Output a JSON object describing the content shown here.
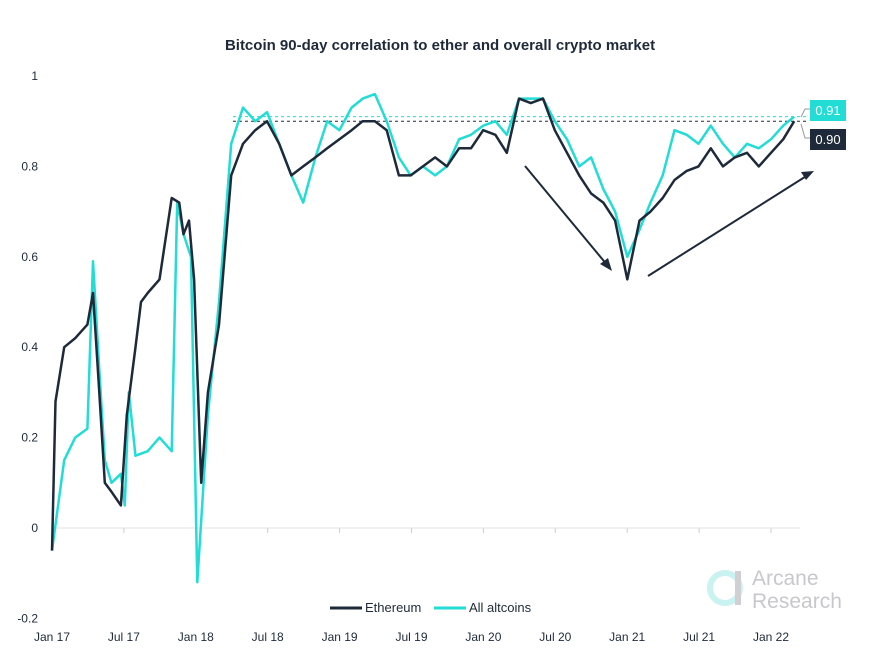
{
  "chart_data": {
    "type": "line",
    "title": "Bitcoin 90-day correlation to ether and overall crypto market",
    "xlabel": "",
    "ylabel": "",
    "ylim": [
      -0.2,
      1
    ],
    "yticks": [
      "1",
      "0.8",
      "0.6",
      "0.4",
      "0.2",
      "0",
      "-0.2"
    ],
    "xticks": [
      "Jan 17",
      "Jul 17",
      "Jan 18",
      "Jul 18",
      "Jan 19",
      "Jul 19",
      "Jan 20",
      "Jul 20",
      "Jan 21",
      "Jul 21",
      "Jan 22"
    ],
    "grid": false,
    "legend": "bottom",
    "colors": {
      "Ethereum": "#1e2a3a",
      "All altcoins": "#22dcd6"
    },
    "end_labels": {
      "All altcoins": "0.91",
      "Ethereum": "0.90"
    },
    "series": [
      {
        "name": "Ethereum",
        "x": [
          "2017-01-01",
          "2017-01-10",
          "2017-02-01",
          "2017-03-01",
          "2017-04-01",
          "2017-04-15",
          "2017-05-01",
          "2017-05-15",
          "2017-06-01",
          "2017-06-25",
          "2017-07-10",
          "2017-08-01",
          "2017-08-15",
          "2017-09-01",
          "2017-10-01",
          "2017-11-01",
          "2017-11-20",
          "2017-12-01",
          "2017-12-15",
          "2017-12-28",
          "2018-01-15",
          "2018-02-01",
          "2018-03-01",
          "2018-04-01",
          "2018-05-01",
          "2018-06-01",
          "2018-07-01",
          "2018-08-01",
          "2018-09-01",
          "2018-10-01",
          "2018-11-01",
          "2018-12-01",
          "2019-01-01",
          "2019-02-01",
          "2019-03-01",
          "2019-04-01",
          "2019-05-01",
          "2019-06-01",
          "2019-07-01",
          "2019-08-01",
          "2019-09-01",
          "2019-10-01",
          "2019-11-01",
          "2019-12-01",
          "2020-01-01",
          "2020-02-01",
          "2020-03-01",
          "2020-04-01",
          "2020-05-01",
          "2020-06-01",
          "2020-07-01",
          "2020-08-01",
          "2020-09-01",
          "2020-10-01",
          "2020-11-01",
          "2020-12-01",
          "2021-01-01",
          "2021-02-01",
          "2021-03-01",
          "2021-04-01",
          "2021-05-01",
          "2021-06-01",
          "2021-07-01",
          "2021-08-01",
          "2021-09-01",
          "2021-10-01",
          "2021-11-01",
          "2021-12-01",
          "2022-01-01",
          "2022-02-01",
          "2022-03-01"
        ],
        "values": [
          -0.05,
          0.28,
          0.4,
          0.42,
          0.45,
          0.52,
          0.3,
          0.1,
          0.08,
          0.05,
          0.25,
          0.4,
          0.5,
          0.52,
          0.55,
          0.73,
          0.72,
          0.65,
          0.68,
          0.55,
          0.1,
          0.3,
          0.45,
          0.78,
          0.85,
          0.88,
          0.9,
          0.85,
          0.78,
          0.8,
          0.82,
          0.84,
          0.86,
          0.88,
          0.9,
          0.9,
          0.88,
          0.78,
          0.78,
          0.8,
          0.82,
          0.8,
          0.84,
          0.84,
          0.88,
          0.87,
          0.83,
          0.95,
          0.94,
          0.95,
          0.88,
          0.83,
          0.78,
          0.74,
          0.72,
          0.68,
          0.55,
          0.68,
          0.7,
          0.73,
          0.77,
          0.79,
          0.8,
          0.84,
          0.8,
          0.82,
          0.83,
          0.8,
          0.83,
          0.86,
          0.9
        ]
      },
      {
        "name": "All altcoins",
        "x": [
          "2017-01-01",
          "2017-02-01",
          "2017-03-01",
          "2017-04-01",
          "2017-04-15",
          "2017-05-01",
          "2017-05-15",
          "2017-06-01",
          "2017-06-25",
          "2017-07-05",
          "2017-07-15",
          "2017-08-01",
          "2017-09-01",
          "2017-10-01",
          "2017-11-01",
          "2017-11-15",
          "2017-12-01",
          "2017-12-20",
          "2018-01-05",
          "2018-02-01",
          "2018-03-01",
          "2018-04-01",
          "2018-05-01",
          "2018-06-01",
          "2018-07-01",
          "2018-08-01",
          "2018-09-01",
          "2018-10-01",
          "2018-11-01",
          "2018-12-01",
          "2019-01-01",
          "2019-02-01",
          "2019-03-01",
          "2019-04-01",
          "2019-05-01",
          "2019-06-01",
          "2019-07-01",
          "2019-08-01",
          "2019-09-01",
          "2019-10-01",
          "2019-11-01",
          "2019-12-01",
          "2020-01-01",
          "2020-02-01",
          "2020-03-01",
          "2020-04-01",
          "2020-05-01",
          "2020-06-01",
          "2020-07-01",
          "2020-08-01",
          "2020-09-01",
          "2020-10-01",
          "2020-11-01",
          "2020-12-01",
          "2021-01-01",
          "2021-02-01",
          "2021-03-01",
          "2021-04-01",
          "2021-05-01",
          "2021-06-01",
          "2021-07-01",
          "2021-08-01",
          "2021-09-01",
          "2021-10-01",
          "2021-11-01",
          "2021-12-01",
          "2022-01-01",
          "2022-02-01",
          "2022-03-01"
        ],
        "values": [
          -0.05,
          0.15,
          0.2,
          0.22,
          0.59,
          0.35,
          0.15,
          0.1,
          0.12,
          0.05,
          0.3,
          0.16,
          0.17,
          0.2,
          0.17,
          0.72,
          0.65,
          0.6,
          -0.12,
          0.25,
          0.5,
          0.85,
          0.93,
          0.9,
          0.92,
          0.85,
          0.78,
          0.72,
          0.82,
          0.9,
          0.88,
          0.93,
          0.95,
          0.96,
          0.9,
          0.82,
          0.78,
          0.8,
          0.78,
          0.8,
          0.86,
          0.87,
          0.89,
          0.9,
          0.87,
          0.95,
          0.95,
          0.95,
          0.9,
          0.86,
          0.8,
          0.82,
          0.75,
          0.7,
          0.6,
          0.66,
          0.72,
          0.78,
          0.88,
          0.87,
          0.85,
          0.89,
          0.85,
          0.82,
          0.85,
          0.84,
          0.86,
          0.89,
          0.91
        ]
      }
    ]
  },
  "watermark": {
    "line1": "Arcane",
    "line2": "Research"
  }
}
